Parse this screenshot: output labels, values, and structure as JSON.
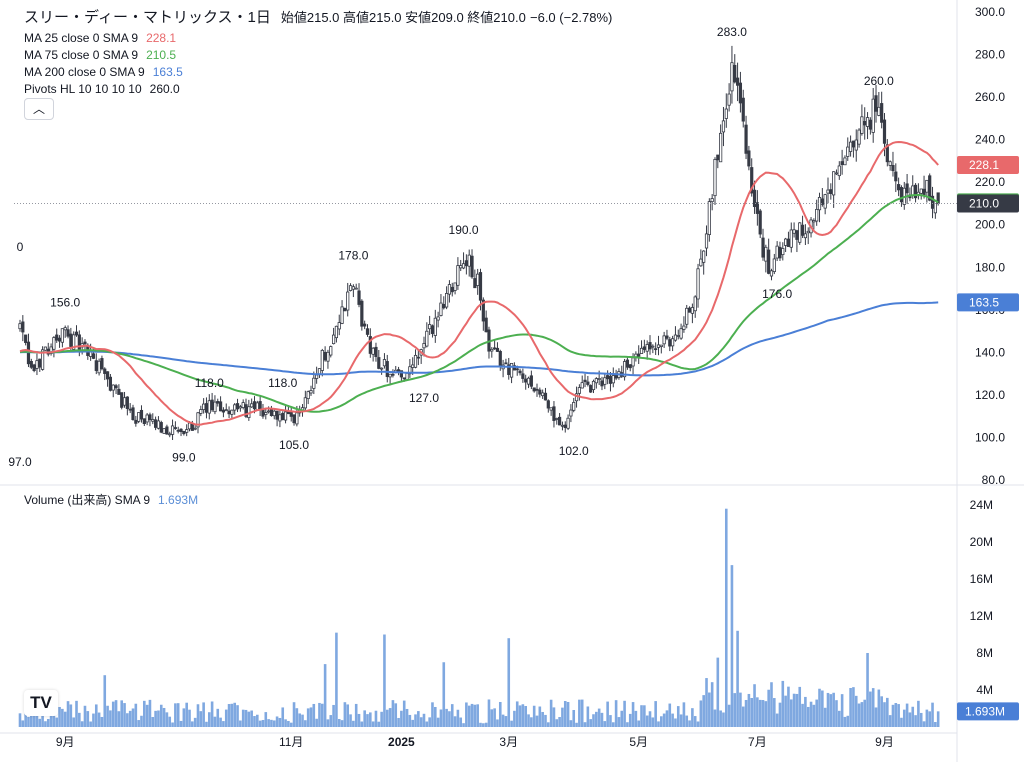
{
  "header": {
    "symbol": "スリー・ディー・マトリックス・1日",
    "ohlc": "始値215.0 高値215.0 安値209.0 終値210.0",
    "change": "−6.0 (−2.78%)"
  },
  "indicators": [
    {
      "label": "MA 25 close 0 SMA 9",
      "value": "228.1",
      "color": "#e8696b"
    },
    {
      "label": "MA 75 close 0 SMA 9",
      "value": "210.5",
      "color": "#4caf50"
    },
    {
      "label": "MA 200 close 0 SMA 9",
      "value": "163.5",
      "color": "#4a7fd6"
    },
    {
      "label": "Pivots HL 10 10 10 10",
      "value": "260.0",
      "color": "#131722"
    }
  ],
  "collapse_icon": "chevron-up-icon",
  "volume_legend": {
    "label": "Volume (出来高) SMA 9",
    "value": "1.693M"
  },
  "logo_text": "TV",
  "colors": {
    "up": "#ffffff",
    "down": "#363a45",
    "ma25": "#e8696b",
    "ma75": "#4caf50",
    "ma200": "#4a7fd6",
    "volume": "#7fa8e0",
    "last": "#363a45"
  },
  "chart_data": {
    "type": "candlestick",
    "x_labels": [
      "9月",
      "11月",
      "2025",
      "3月",
      "5月",
      "7月",
      "9月"
    ],
    "price_axis": {
      "ticks": [
        80,
        100,
        120,
        140,
        160,
        180,
        200,
        220,
        240,
        260,
        280,
        300
      ],
      "tick_labels": [
        "80.0",
        "100.0",
        "120.0",
        "140.0",
        "160.0",
        "180.0",
        "200.0",
        "220.0",
        "240.0",
        "260.0",
        "280.0",
        "300.0"
      ],
      "range": [
        80,
        300
      ]
    },
    "volume_axis": {
      "ticks": [
        4,
        8,
        12,
        16,
        20,
        24
      ],
      "tick_labels": [
        "4M",
        "8M",
        "12M",
        "16M",
        "20M",
        "24M"
      ],
      "range": [
        0,
        25
      ]
    },
    "price_key_points": [
      [
        0,
        152
      ],
      [
        4,
        130
      ],
      [
        10,
        143
      ],
      [
        16,
        149
      ],
      [
        24,
        140
      ],
      [
        40,
        110
      ],
      [
        58,
        101
      ],
      [
        66,
        114
      ],
      [
        84,
        113
      ],
      [
        92,
        110
      ],
      [
        97,
        107
      ],
      [
        103,
        125
      ],
      [
        112,
        152
      ],
      [
        118,
        172
      ],
      [
        124,
        140
      ],
      [
        131,
        131
      ],
      [
        138,
        130
      ],
      [
        146,
        152
      ],
      [
        157,
        186
      ],
      [
        162,
        172
      ],
      [
        166,
        140
      ],
      [
        174,
        132
      ],
      [
        182,
        125
      ],
      [
        188,
        112
      ],
      [
        192,
        104
      ],
      [
        198,
        122
      ],
      [
        210,
        128
      ],
      [
        218,
        138
      ],
      [
        230,
        145
      ],
      [
        238,
        160
      ],
      [
        244,
        210
      ],
      [
        250,
        260
      ],
      [
        252,
        276
      ],
      [
        256,
        250
      ],
      [
        262,
        190
      ],
      [
        266,
        180
      ],
      [
        272,
        195
      ],
      [
        282,
        205
      ],
      [
        292,
        230
      ],
      [
        300,
        248
      ],
      [
        304,
        258
      ],
      [
        308,
        225
      ],
      [
        312,
        215
      ],
      [
        320,
        218
      ],
      [
        325,
        210
      ]
    ],
    "pivot_labels": [
      {
        "index": 0,
        "value": "97.0",
        "price": 97,
        "pos": "below"
      },
      {
        "index": 0,
        "value": "0",
        "price": 182,
        "pos": "above"
      },
      {
        "index": 16,
        "value": "156.0",
        "price": 156,
        "pos": "above"
      },
      {
        "index": 58,
        "value": "99.0",
        "price": 99,
        "pos": "below"
      },
      {
        "index": 67,
        "value": "118.0",
        "price": 118,
        "pos": "above"
      },
      {
        "index": 93,
        "value": "118.0",
        "price": 118,
        "pos": "above"
      },
      {
        "index": 97,
        "value": "105.0",
        "price": 105,
        "pos": "below"
      },
      {
        "index": 118,
        "value": "178.0",
        "price": 178,
        "pos": "above"
      },
      {
        "index": 143,
        "value": "127.0",
        "price": 127,
        "pos": "below"
      },
      {
        "index": 157,
        "value": "190.0",
        "price": 190,
        "pos": "above"
      },
      {
        "index": 196,
        "value": "102.0",
        "price": 102,
        "pos": "below"
      },
      {
        "index": 252,
        "value": "283.0",
        "price": 283,
        "pos": "above"
      },
      {
        "index": 268,
        "value": "176.0",
        "price": 176,
        "pos": "below"
      },
      {
        "index": 304,
        "value": "260.0",
        "price": 260,
        "pos": "above"
      }
    ],
    "last_values": [
      {
        "label": "228.1",
        "price": 228.1,
        "color": "#e8696b"
      },
      {
        "label": "210.5",
        "price": 210.5,
        "color": "#4caf50"
      },
      {
        "label": "210.0",
        "price": 210.0,
        "color": "#363a45"
      },
      {
        "label": "163.5",
        "price": 163.5,
        "color": "#4a7fd6"
      }
    ],
    "volume_last": {
      "label": "1.693M",
      "value": 1.693,
      "color": "#4a7fd6"
    },
    "volume_spikes": [
      {
        "index": 30,
        "value": 5.6
      },
      {
        "index": 108,
        "value": 6.8
      },
      {
        "index": 112,
        "value": 10.2
      },
      {
        "index": 129,
        "value": 10.0
      },
      {
        "index": 150,
        "value": 7.0
      },
      {
        "index": 173,
        "value": 9.6
      },
      {
        "index": 247,
        "value": 7.5
      },
      {
        "index": 250,
        "value": 23.6
      },
      {
        "index": 252,
        "value": 17.5
      },
      {
        "index": 254,
        "value": 10.4
      },
      {
        "index": 300,
        "value": 8.0
      }
    ]
  }
}
